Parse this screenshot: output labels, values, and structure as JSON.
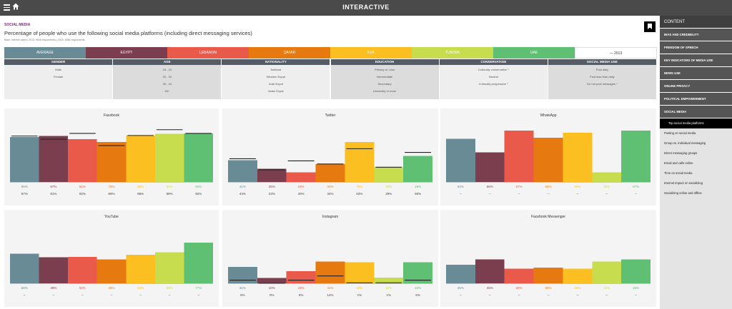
{
  "header": {
    "title": "INTERACTIVE"
  },
  "section_label": "SOCIAL MEDIA",
  "page_title": "Percentage of people who use the following social media platforms (including direct messaging services)",
  "source_note": "Base: Internet users | 2013: 9838 respondents | 2015: 4856 respondents",
  "legend": [
    {
      "label": "AVERAGE",
      "color": "#698b96"
    },
    {
      "label": "EGYPT",
      "color": "#7b3e4f"
    },
    {
      "label": "LEBANON",
      "color": "#e95a4a"
    },
    {
      "label": "QATAR",
      "color": "#e67a10"
    },
    {
      "label": "KSA",
      "color": "#fbbf22"
    },
    {
      "label": "TUNISIA",
      "color": "#c7dd4e"
    },
    {
      "label": "UAE",
      "color": "#5fbf72"
    }
  ],
  "legend_year": "— 2013",
  "filters": [
    {
      "header": "GENDER",
      "options": [
        "Male",
        "Female"
      ]
    },
    {
      "header": "AGE",
      "options": [
        "18 - 24",
        "25 - 34",
        "35 - 44",
        "45+"
      ]
    },
    {
      "header": "NATIONALITY",
      "options": [
        "National",
        "Western Expat",
        "Arab Expat",
        "Asian Expat"
      ]
    },
    {
      "header": "EDUCATION",
      "options": [
        "Primary or Less",
        "Intermediate",
        "Secondary",
        "University or more"
      ]
    },
    {
      "header": "CONSERVATISM",
      "options": [
        "Culturally conservative *",
        "Neutral",
        "Culturally progressive *"
      ]
    },
    {
      "header": "SOCIAL MEDIA USE",
      "options": [
        "Post daily",
        "Post less than daily",
        "Do not post messages *"
      ]
    }
  ],
  "chart_data": [
    {
      "type": "bar",
      "title": "Facebook",
      "categories": [
        "AVERAGE",
        "EGYPT",
        "LEBANON",
        "QATAR",
        "KSA",
        "TUNISIA",
        "UAE"
      ],
      "ylim": [
        0,
        100
      ],
      "series": [
        {
          "name": "2015",
          "values": [
            85,
            87,
            81,
            76,
            88,
            91,
            92
          ]
        },
        {
          "name": "2013",
          "values": [
            87,
            81,
            92,
            69,
            88,
            99,
            92
          ]
        }
      ],
      "value_labels": [
        "85%",
        "87%",
        "81%",
        "76%",
        "88%",
        "91%",
        "92%"
      ],
      "prev_labels": [
        "87%",
        "81%",
        "92%",
        "69%",
        "88%",
        "99%",
        "92%"
      ]
    },
    {
      "type": "bar",
      "title": "Twitter",
      "categories": [
        "AVERAGE",
        "EGYPT",
        "LEBANON",
        "QATAR",
        "KSA",
        "TUNISIA",
        "UAE"
      ],
      "ylim": [
        0,
        100
      ],
      "series": [
        {
          "name": "2015",
          "values": [
            41,
            25,
            18,
            34,
            76,
            28,
            49
          ]
        },
        {
          "name": "2013",
          "values": [
            44,
            23,
            40,
            34,
            63,
            28,
            56
          ]
        }
      ],
      "value_labels": [
        "41%",
        "25%",
        "18%",
        "34%",
        "76%",
        "28%",
        "49%"
      ],
      "prev_labels": [
        "44%",
        "23%",
        "40%",
        "34%",
        "63%",
        "28%",
        "56%"
      ]
    },
    {
      "type": "bar",
      "title": "WhatsApp",
      "categories": [
        "AVERAGE",
        "EGYPT",
        "LEBANON",
        "QATAR",
        "KSA",
        "TUNISIA",
        "UAE"
      ],
      "ylim": [
        0,
        100
      ],
      "series": [
        {
          "name": "2015",
          "values": [
            82,
            56,
            97,
            84,
            93,
            18,
            97
          ]
        }
      ],
      "value_labels": [
        "82%",
        "56%",
        "97%",
        "84%",
        "93%",
        "18%",
        "97%"
      ],
      "prev_labels": [
        "--",
        "--",
        "--",
        "--",
        "--",
        "--",
        "--"
      ]
    },
    {
      "type": "bar",
      "title": "YouTube",
      "categories": [
        "AVERAGE",
        "EGYPT",
        "LEBANON",
        "QATAR",
        "KSA",
        "TUNISIA",
        "UAE"
      ],
      "ylim": [
        0,
        100
      ],
      "series": [
        {
          "name": "2015",
          "values": [
            56,
            49,
            50,
            45,
            54,
            59,
            77
          ]
        }
      ],
      "value_labels": [
        "56%",
        "49%",
        "50%",
        "45%",
        "54%",
        "59%",
        "77%"
      ],
      "prev_labels": [
        "--",
        "--",
        "--",
        "--",
        "--",
        "--",
        "--"
      ]
    },
    {
      "type": "bar",
      "title": "Instagram",
      "categories": [
        "AVERAGE",
        "EGYPT",
        "LEBANON",
        "QATAR",
        "KSA",
        "TUNISIA",
        "UAE"
      ],
      "ylim": [
        0,
        100
      ],
      "series": [
        {
          "name": "2015",
          "values": [
            31,
            10,
            23,
            41,
            40,
            11,
            40
          ]
        },
        {
          "name": "2013",
          "values": [
            6,
            0,
            6,
            14,
            1,
            1,
            6
          ]
        }
      ],
      "value_labels": [
        "31%",
        "10%",
        "23%",
        "41%",
        "40%",
        "11%",
        "40%"
      ],
      "prev_labels": [
        "6%",
        "0%",
        "6%",
        "14%",
        "1%",
        "1%",
        "6%"
      ]
    },
    {
      "type": "bar",
      "title": "Facebook Messenger",
      "categories": [
        "AVERAGE",
        "EGYPT",
        "LEBANON",
        "QATAR",
        "KSA",
        "TUNISIA",
        "UAE"
      ],
      "ylim": [
        0,
        100
      ],
      "series": [
        {
          "name": "2015",
          "values": [
            35,
            45,
            28,
            30,
            28,
            41,
            45
          ]
        }
      ],
      "value_labels": [
        "35%",
        "45%",
        "28%",
        "30%",
        "28%",
        "41%",
        "45%"
      ],
      "prev_labels": [
        "--",
        "--",
        "--",
        "--",
        "--",
        "--",
        "--"
      ]
    }
  ],
  "sidebar": {
    "header": "CONTENT",
    "items": [
      "BIAS AND CREDIBILITY",
      "FREEDOM OF SPEECH",
      "KEY INDICATORS OF MEDIA USE",
      "NEWS USE",
      "ONLINE PRIVACY",
      "POLITICAL EMPOWERMENT",
      "SOCIAL MEDIA"
    ],
    "subitems": [
      "Top social media platforms",
      "Posting on social media",
      "Group vs. individual messaging",
      "Direct messaging groups",
      "Email and calls online",
      "Time on social media",
      "Internet impact on socializing",
      "Socializing online and offline"
    ]
  }
}
